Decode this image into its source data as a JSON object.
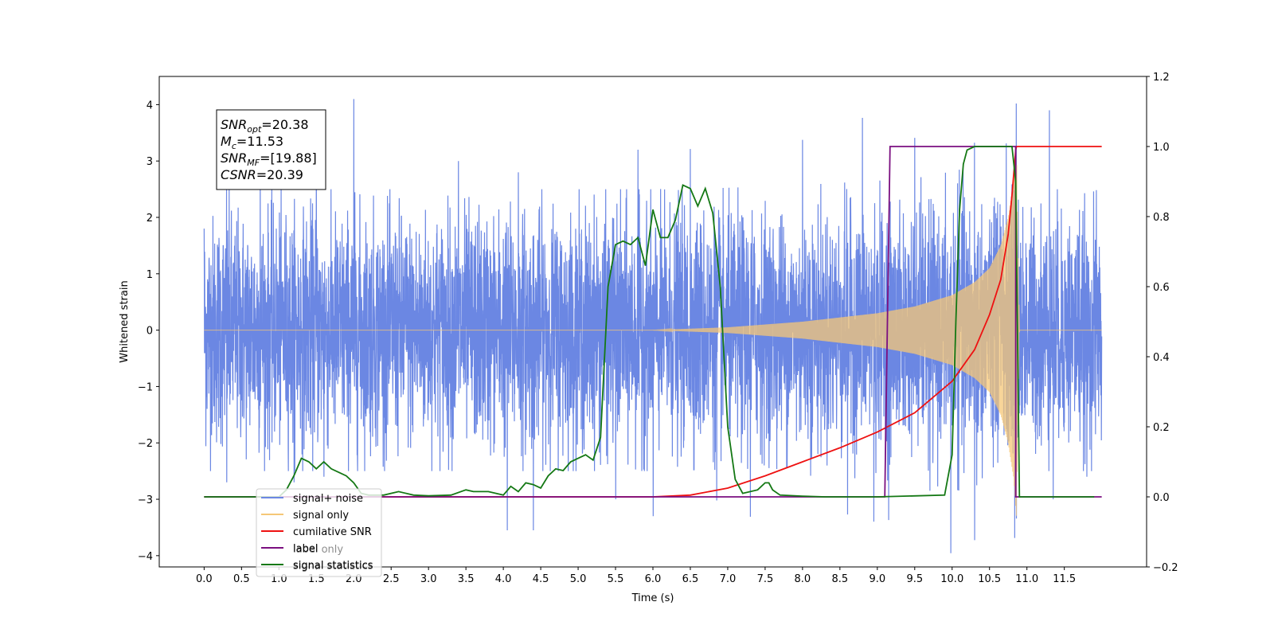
{
  "chart_data": {
    "type": "line",
    "xlabel": "Time (s)",
    "ylabel": "Whitened strain",
    "xlim": [
      -0.6,
      12.6
    ],
    "ylim": [
      -4.2,
      4.5
    ],
    "y2lim": [
      -0.2,
      1.2
    ],
    "x_ticks": [
      "0.0",
      "0.5",
      "1.0",
      "1.5",
      "2.0",
      "2.5",
      "3.0",
      "3.5",
      "4.0",
      "4.5",
      "5.0",
      "5.5",
      "6.0",
      "6.5",
      "7.0",
      "7.5",
      "8.0",
      "8.5",
      "9.0",
      "9.5",
      "10.0",
      "10.5",
      "11.0",
      "11.5"
    ],
    "y_ticks": [
      "4",
      "3",
      "2",
      "1",
      "0",
      "−1",
      "−2",
      "−3",
      "−4"
    ],
    "y2_ticks": [
      "1.2",
      "1.0",
      "0.8",
      "0.6",
      "0.4",
      "0.2",
      "0.0",
      "−0.2"
    ],
    "annotation": {
      "lines": [
        {
          "base": "SNR",
          "sub": "opt",
          "rest": "=20.38"
        },
        {
          "base": "M",
          "sub": "c",
          "rest": "=11.53"
        },
        {
          "base": "SNR",
          "sub": "MF",
          "rest": "=[19.88]"
        },
        {
          "base": "CSNR",
          "sub": "",
          "rest": "=20.39"
        }
      ]
    },
    "legend": {
      "placement": "lower-left",
      "entries": [
        "signal+ noise",
        "signal only",
        "cumilative SNR",
        "label",
        "signal statistics"
      ],
      "hidden_text": [
        "label only",
        "signal statistics"
      ]
    },
    "series": [
      {
        "name": "signal+ noise",
        "axis": "left",
        "color": "#6b87e3",
        "x_range": [
          0.0,
          12.0
        ],
        "noise_std": 1.0,
        "peaks_high": [
          [
            0.0,
            1.8
          ],
          [
            0.3,
            2.5
          ],
          [
            0.75,
            2.9
          ],
          [
            1.5,
            3.2
          ],
          [
            2.0,
            4.1
          ],
          [
            3.4,
            3.0
          ],
          [
            4.2,
            2.8
          ],
          [
            5.8,
            3.2
          ],
          [
            6.5,
            3.2
          ],
          [
            8.0,
            3.3
          ],
          [
            8.8,
            3.9
          ],
          [
            9.5,
            3.2
          ],
          [
            10.3,
            2.9
          ],
          [
            10.8,
            3.8
          ],
          [
            11.3,
            3.9
          ]
        ],
        "peaks_low": [
          [
            0.3,
            -2.7
          ],
          [
            1.2,
            -2.7
          ],
          [
            1.6,
            -2.6
          ],
          [
            4.05,
            -3.55
          ],
          [
            4.4,
            -3.55
          ],
          [
            5.5,
            -3.0
          ],
          [
            6.0,
            -3.3
          ],
          [
            6.85,
            -3.0
          ],
          [
            7.3,
            -3.35
          ],
          [
            8.6,
            -3.15
          ],
          [
            8.95,
            -3.25
          ],
          [
            9.15,
            -3.2
          ],
          [
            9.7,
            -3.1
          ],
          [
            9.98,
            -3.65
          ],
          [
            10.3,
            -3.3
          ],
          [
            10.85,
            -3.8
          ],
          [
            11.35,
            -3.0
          ],
          [
            11.8,
            -2.6
          ]
        ]
      },
      {
        "name": "signal only",
        "axis": "left",
        "color": "#f5c777",
        "x": [
          0.0,
          6.0,
          7.0,
          8.0,
          9.0,
          9.5,
          10.0,
          10.3,
          10.5,
          10.65,
          10.75,
          10.82,
          10.86,
          10.9,
          12.0
        ],
        "amplitude": [
          0.0,
          0.0,
          0.05,
          0.15,
          0.3,
          0.42,
          0.62,
          0.85,
          1.1,
          1.5,
          2.0,
          2.6,
          3.3,
          0.0,
          0.0
        ]
      },
      {
        "name": "cumilative SNR",
        "axis": "right",
        "color": "#ee1111",
        "x": [
          0.0,
          6.0,
          6.5,
          7.0,
          7.5,
          8.0,
          8.5,
          9.0,
          9.5,
          10.0,
          10.3,
          10.5,
          10.65,
          10.75,
          10.8,
          10.85,
          10.86,
          12.0
        ],
        "y": [
          0.0,
          0.0,
          0.005,
          0.025,
          0.06,
          0.1,
          0.14,
          0.185,
          0.24,
          0.33,
          0.42,
          0.52,
          0.62,
          0.75,
          0.86,
          0.99,
          1.0,
          1.0
        ]
      },
      {
        "name": "label",
        "axis": "right",
        "color": "#7b0f80",
        "x": [
          0.0,
          9.1,
          9.1,
          9.17,
          10.85,
          10.85,
          12.0
        ],
        "y": [
          0.0,
          0.0,
          0.0,
          1.0,
          1.0,
          0.0,
          0.0
        ]
      },
      {
        "name": "signal statistics",
        "axis": "right",
        "color": "#147814",
        "x": [
          0.0,
          1.0,
          1.1,
          1.2,
          1.3,
          1.4,
          1.5,
          1.6,
          1.7,
          1.8,
          1.9,
          2.0,
          2.1,
          2.2,
          2.4,
          2.6,
          2.8,
          3.0,
          3.3,
          3.5,
          3.6,
          3.8,
          4.0,
          4.1,
          4.2,
          4.3,
          4.4,
          4.5,
          4.6,
          4.7,
          4.8,
          4.9,
          5.0,
          5.1,
          5.2,
          5.3,
          5.4,
          5.5,
          5.6,
          5.7,
          5.8,
          5.9,
          6.0,
          6.1,
          6.2,
          6.3,
          6.4,
          6.5,
          6.6,
          6.7,
          6.8,
          6.9,
          6.95,
          7.0,
          7.1,
          7.2,
          7.4,
          7.5,
          7.55,
          7.6,
          7.7,
          8.0,
          8.3,
          9.0,
          9.9,
          10.0,
          10.05,
          10.1,
          10.15,
          10.2,
          10.3,
          10.5,
          10.8,
          10.85,
          10.9,
          11.0,
          11.9
        ],
        "y": [
          0.0,
          0.0,
          0.02,
          0.06,
          0.11,
          0.1,
          0.08,
          0.1,
          0.08,
          0.07,
          0.06,
          0.04,
          0.01,
          0.005,
          0.005,
          0.015,
          0.005,
          0.003,
          0.005,
          0.02,
          0.015,
          0.015,
          0.005,
          0.03,
          0.015,
          0.04,
          0.035,
          0.025,
          0.06,
          0.08,
          0.075,
          0.1,
          0.11,
          0.12,
          0.105,
          0.17,
          0.6,
          0.72,
          0.73,
          0.72,
          0.74,
          0.66,
          0.82,
          0.74,
          0.74,
          0.79,
          0.89,
          0.88,
          0.83,
          0.88,
          0.81,
          0.6,
          0.4,
          0.2,
          0.05,
          0.01,
          0.02,
          0.04,
          0.04,
          0.02,
          0.005,
          0.002,
          0.0,
          0.0,
          0.005,
          0.12,
          0.5,
          0.82,
          0.95,
          0.99,
          1.0,
          1.0,
          1.0,
          0.9,
          0.0,
          0.0,
          0.0
        ]
      }
    ]
  }
}
